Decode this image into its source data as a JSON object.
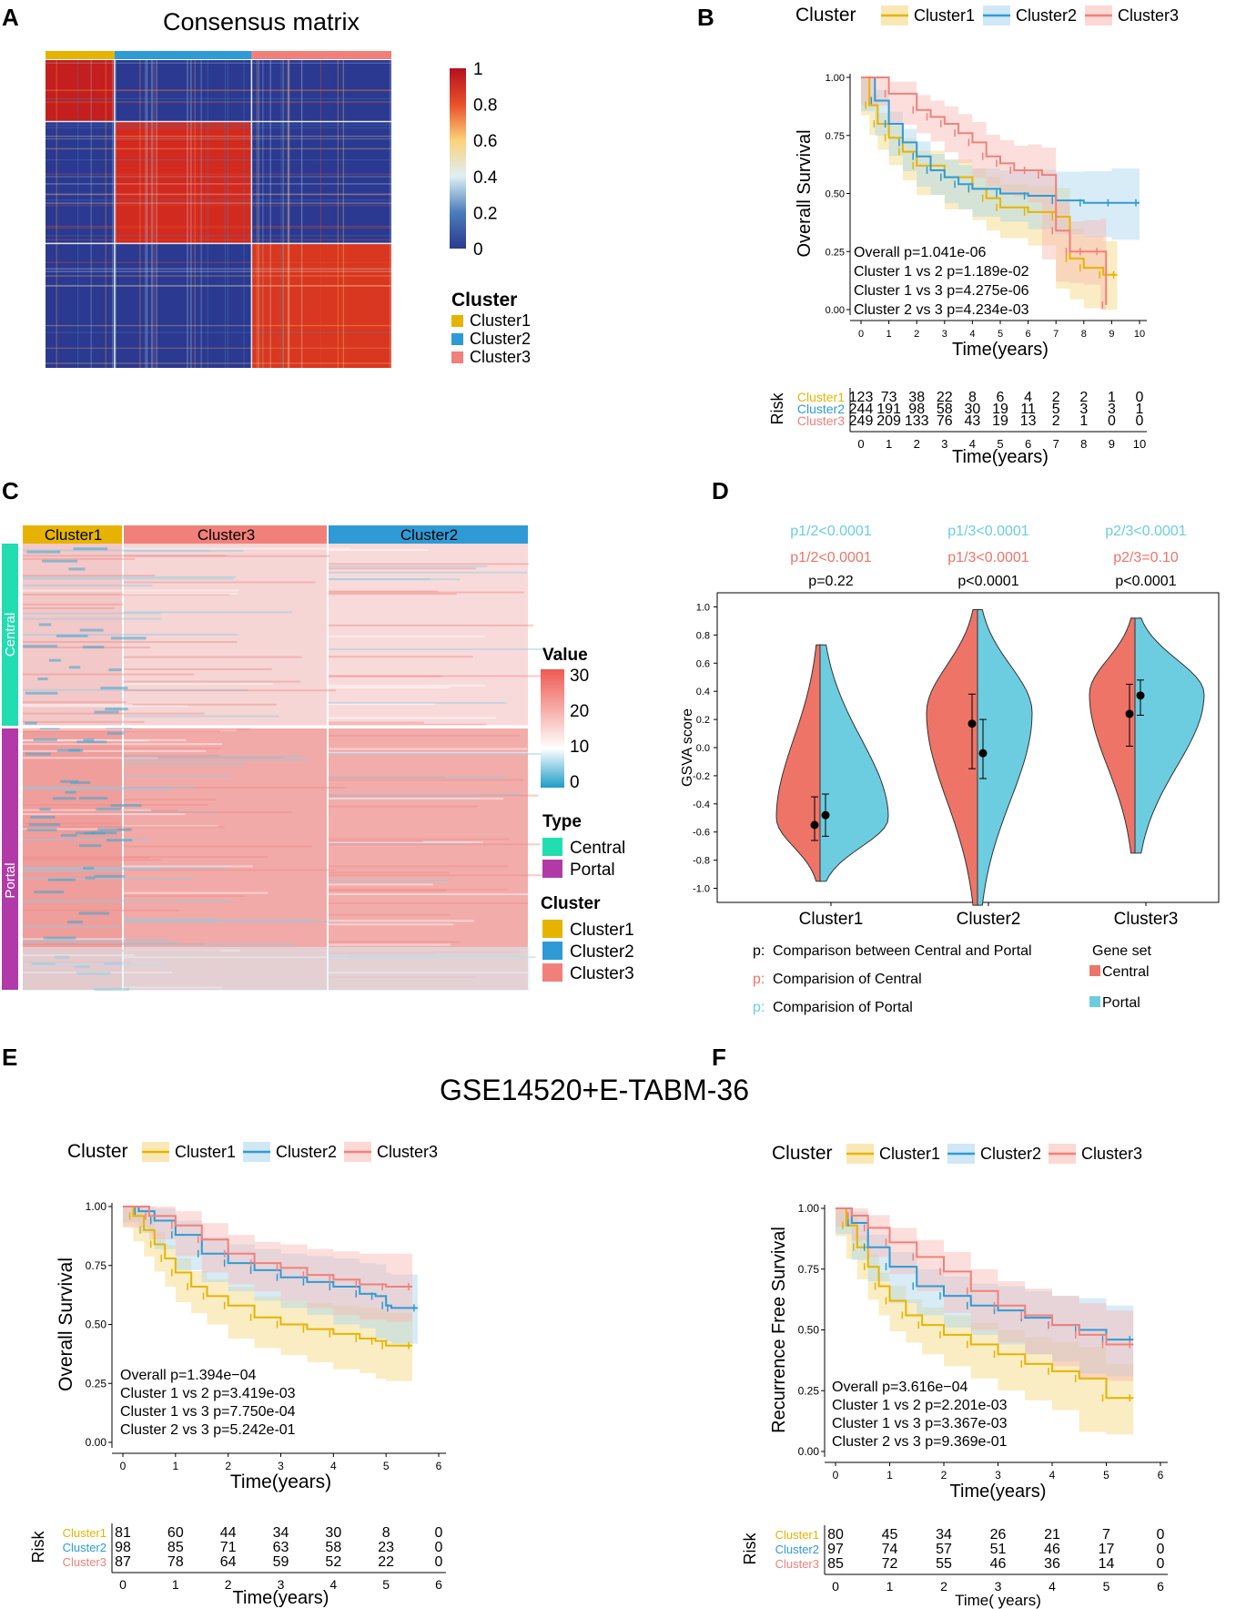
{
  "panel_labels": {
    "a": "A",
    "b": "B",
    "c": "C",
    "d": "D",
    "e": "E",
    "f": "F"
  },
  "colors": {
    "cluster1": "#E6B400",
    "cluster2": "#2E9BD6",
    "cluster3": "#F2807A",
    "central": "#EE7468",
    "portal": "#6CCDE0",
    "type_central": "#22DDB0",
    "type_portal": "#B23AA8"
  },
  "chart_data": [
    {
      "id": "A",
      "type": "heatmap",
      "title": "Consensus matrix",
      "colorbar_ticks": [
        "1",
        "0.8",
        "0.6",
        "0.4",
        "0.2",
        "0"
      ],
      "legend_title": "Cluster",
      "legend": [
        "Cluster1",
        "Cluster2",
        "Cluster3"
      ],
      "cluster_sizes": [
        123,
        244,
        249
      ]
    },
    {
      "id": "B",
      "type": "line",
      "legend_title": "Cluster",
      "legend": [
        "Cluster1",
        "Cluster2",
        "Cluster3"
      ],
      "ylabel": "Overall Survival",
      "xlabel": "Time(years)",
      "xlim": [
        0,
        10
      ],
      "ylim": [
        0,
        1
      ],
      "x_ticks": [
        "0",
        "1",
        "2",
        "3",
        "4",
        "5",
        "6",
        "7",
        "8",
        "9",
        "10"
      ],
      "y_ticks": [
        "1.00",
        "0.75",
        "0.50",
        "0.25",
        "0.00"
      ],
      "series": [
        {
          "name": "Cluster1",
          "x": [
            0,
            0.3,
            0.6,
            1,
            1.5,
            2,
            3,
            4,
            4.5,
            5,
            6,
            7,
            7.5,
            8,
            8.7,
            9.2
          ],
          "y": [
            1,
            0.88,
            0.8,
            0.74,
            0.68,
            0.62,
            0.57,
            0.52,
            0.48,
            0.44,
            0.42,
            0.4,
            0.22,
            0.18,
            0.15,
            0.15
          ]
        },
        {
          "name": "Cluster2",
          "x": [
            0,
            0.5,
            1,
            1.5,
            2,
            2.5,
            3,
            3.5,
            4,
            5,
            6,
            7,
            8,
            9,
            10
          ],
          "y": [
            1,
            0.9,
            0.8,
            0.72,
            0.66,
            0.6,
            0.57,
            0.54,
            0.52,
            0.5,
            0.49,
            0.47,
            0.46,
            0.46,
            0.46
          ]
        },
        {
          "name": "Cluster3",
          "x": [
            0,
            1,
            2,
            2.5,
            3,
            3.5,
            4,
            4.5,
            5,
            5.5,
            6,
            6.5,
            7,
            7.5,
            8,
            8.6,
            8.8
          ],
          "y": [
            1,
            0.93,
            0.86,
            0.83,
            0.8,
            0.76,
            0.72,
            0.66,
            0.63,
            0.6,
            0.6,
            0.58,
            0.34,
            0.25,
            0.25,
            0.25,
            0.02
          ]
        }
      ],
      "stats": [
        "Overall  p=1.041e-06",
        "Cluster 1 vs 2   p=1.189e-02",
        "Cluster 1 vs 3   p=4.275e-06",
        "Cluster 2 vs 3   p=4.234e-03"
      ],
      "risk_label": "Risk",
      "risk_names": [
        "Cluster1",
        "Cluster2",
        "Cluster3"
      ],
      "risk": [
        [
          "123",
          "73",
          "38",
          "22",
          "8",
          "6",
          "4",
          "2",
          "2",
          "1",
          "0"
        ],
        [
          "244",
          "191",
          "98",
          "58",
          "30",
          "19",
          "11",
          "5",
          "3",
          "3",
          "1"
        ],
        [
          "249",
          "209",
          "133",
          "76",
          "43",
          "19",
          "13",
          "2",
          "1",
          "0",
          "0"
        ]
      ]
    },
    {
      "id": "C",
      "type": "heatmap",
      "column_groups": [
        "Cluster1",
        "Cluster3",
        "Cluster2"
      ],
      "row_groups": [
        "Central",
        "Portal"
      ],
      "colorbar_title": "Value",
      "colorbar_ticks": [
        "30",
        "20",
        "10",
        "0"
      ],
      "type_title": "Type",
      "type_legend": [
        "Central",
        "Portal"
      ],
      "cluster_title": "Cluster",
      "cluster_legend": [
        "Cluster1",
        "Cluster2",
        "Cluster3"
      ]
    },
    {
      "id": "D",
      "type": "violin",
      "ylabel": "GSVA score",
      "ylim": [
        -1.1,
        1.1
      ],
      "y_ticks": [
        "1.0",
        "0.8",
        "0.6",
        "0.4",
        "0.2",
        "0.0",
        "-0.2",
        "-0.4",
        "-0.6",
        "-0.8",
        "-1.0"
      ],
      "categories": [
        "Cluster1",
        "Cluster2",
        "Cluster3"
      ],
      "portal_pvals": [
        "p1/2<0.0001",
        "p1/3<0.0001",
        "p2/3<0.0001"
      ],
      "central_pvals": [
        "p1/2<0.0001",
        "p1/3<0.0001",
        "p2/3=0.10"
      ],
      "between_pvals": [
        "p=0.22",
        "p<0.0001",
        "p<0.0001"
      ],
      "central": {
        "mean": [
          -0.55,
          0.17,
          0.24
        ],
        "low": [
          -0.66,
          -0.15,
          0.01
        ],
        "high": [
          -0.35,
          0.38,
          0.45
        ]
      },
      "portal": {
        "mean": [
          -0.48,
          -0.04,
          0.37
        ],
        "low": [
          -0.63,
          -0.22,
          0.23
        ],
        "high": [
          -0.33,
          0.2,
          0.48
        ]
      },
      "notes": [
        {
          "prefix": "p:",
          "text": "Comparison between Central and Portal"
        },
        {
          "prefix": "p:",
          "text": "Comparision of Central"
        },
        {
          "prefix": "p:",
          "text": "Comparision of Portal"
        }
      ],
      "gene_set_title": "Gene set",
      "gene_set": [
        "Central",
        "Portal"
      ]
    },
    {
      "id": "E",
      "type": "line",
      "legend_title": "Cluster",
      "legend": [
        "Cluster1",
        "Cluster2",
        "Cluster3"
      ],
      "ylabel": "Overall Survival",
      "xlabel": "Time(years)",
      "xlim": [
        0,
        6
      ],
      "ylim": [
        0,
        1
      ],
      "x_ticks": [
        "0",
        "1",
        "2",
        "3",
        "4",
        "5",
        "6"
      ],
      "y_ticks": [
        "1.00",
        "0.75",
        "0.50",
        "0.25",
        "0.00"
      ],
      "series": [
        {
          "name": "Cluster1",
          "x": [
            0,
            0.2,
            0.4,
            0.6,
            0.8,
            1,
            1.3,
            1.6,
            2,
            2.5,
            3,
            3.5,
            4,
            4.5,
            4.8,
            5,
            5.5
          ],
          "y": [
            1,
            0.96,
            0.9,
            0.84,
            0.78,
            0.72,
            0.66,
            0.62,
            0.58,
            0.53,
            0.5,
            0.48,
            0.46,
            0.44,
            0.43,
            0.41,
            0.41
          ]
        },
        {
          "name": "Cluster2",
          "x": [
            0,
            0.3,
            0.6,
            1,
            1.5,
            2,
            2.5,
            3,
            3.5,
            4,
            4.5,
            4.8,
            5,
            5.1,
            5.6
          ],
          "y": [
            1,
            0.98,
            0.94,
            0.88,
            0.8,
            0.76,
            0.73,
            0.7,
            0.68,
            0.66,
            0.63,
            0.62,
            0.58,
            0.57,
            0.57
          ]
        },
        {
          "name": "Cluster3",
          "x": [
            0,
            0.5,
            1,
            1.5,
            2,
            2.5,
            3,
            3.5,
            4,
            4.5,
            5,
            5.5
          ],
          "y": [
            1,
            0.96,
            0.92,
            0.86,
            0.8,
            0.76,
            0.74,
            0.71,
            0.69,
            0.67,
            0.66,
            0.66
          ]
        }
      ],
      "stats": [
        "Overall  p=1.394e−04",
        "Cluster 1 vs 2   p=3.419e-03",
        "Cluster 1 vs 3   p=7.750e-04",
        "Cluster 2 vs 3   p=5.242e-01"
      ],
      "risk_label": "Risk",
      "risk_names": [
        "Cluster1",
        "Cluster2",
        "Cluster3"
      ],
      "risk": [
        [
          "81",
          "60",
          "44",
          "34",
          "30",
          "8",
          "0"
        ],
        [
          "98",
          "85",
          "71",
          "63",
          "58",
          "23",
          "0"
        ],
        [
          "87",
          "78",
          "64",
          "59",
          "52",
          "22",
          "0"
        ]
      ]
    },
    {
      "id": "F",
      "type": "line",
      "legend_title": "Cluster",
      "legend": [
        "Cluster1",
        "Cluster2",
        "Cluster3"
      ],
      "ylabel": "Recurrence Free Survival",
      "xlabel": "Time(years)",
      "risk_xlabel": "Time( years)",
      "xlim": [
        0,
        6
      ],
      "ylim": [
        0,
        1
      ],
      "x_ticks": [
        "0",
        "1",
        "2",
        "3",
        "4",
        "5",
        "6"
      ],
      "y_ticks": [
        "1.00",
        "0.75",
        "0.50",
        "0.25",
        "0.00"
      ],
      "series": [
        {
          "name": "Cluster1",
          "x": [
            0,
            0.2,
            0.4,
            0.6,
            0.8,
            1,
            1.3,
            1.6,
            2,
            2.5,
            3,
            3.5,
            4,
            4.5,
            5,
            5.5
          ],
          "y": [
            1,
            0.93,
            0.84,
            0.76,
            0.68,
            0.62,
            0.56,
            0.52,
            0.48,
            0.44,
            0.4,
            0.36,
            0.33,
            0.3,
            0.22,
            0.22
          ]
        },
        {
          "name": "Cluster2",
          "x": [
            0,
            0.3,
            0.6,
            1,
            1.5,
            2,
            2.5,
            3,
            3.5,
            4,
            4.5,
            5,
            5.5
          ],
          "y": [
            1,
            0.94,
            0.84,
            0.76,
            0.68,
            0.64,
            0.6,
            0.58,
            0.55,
            0.52,
            0.5,
            0.46,
            0.46
          ]
        },
        {
          "name": "Cluster3",
          "x": [
            0,
            0.3,
            0.6,
            1,
            1.5,
            2,
            2.5,
            3,
            3.5,
            4,
            4.5,
            5,
            5.5
          ],
          "y": [
            1,
            0.97,
            0.92,
            0.86,
            0.8,
            0.74,
            0.66,
            0.6,
            0.56,
            0.52,
            0.48,
            0.44,
            0.44
          ]
        }
      ],
      "stats": [
        "Overall  p=3.616e−04",
        "Cluster 1 vs 2   p=2.201e-03",
        "Cluster 1 vs 3   p=3.367e-03",
        "Cluster 2 vs 3   p=9.369e-01"
      ],
      "risk_label": "Risk",
      "risk_names": [
        "Cluster1",
        "Cluster2",
        "Cluster3"
      ],
      "risk": [
        [
          "80",
          "45",
          "34",
          "26",
          "21",
          "7",
          "0"
        ],
        [
          "97",
          "74",
          "57",
          "51",
          "46",
          "17",
          "0"
        ],
        [
          "85",
          "72",
          "55",
          "46",
          "36",
          "14",
          "0"
        ]
      ]
    }
  ],
  "bottom_title": "GSE14520+E-TABM-36"
}
